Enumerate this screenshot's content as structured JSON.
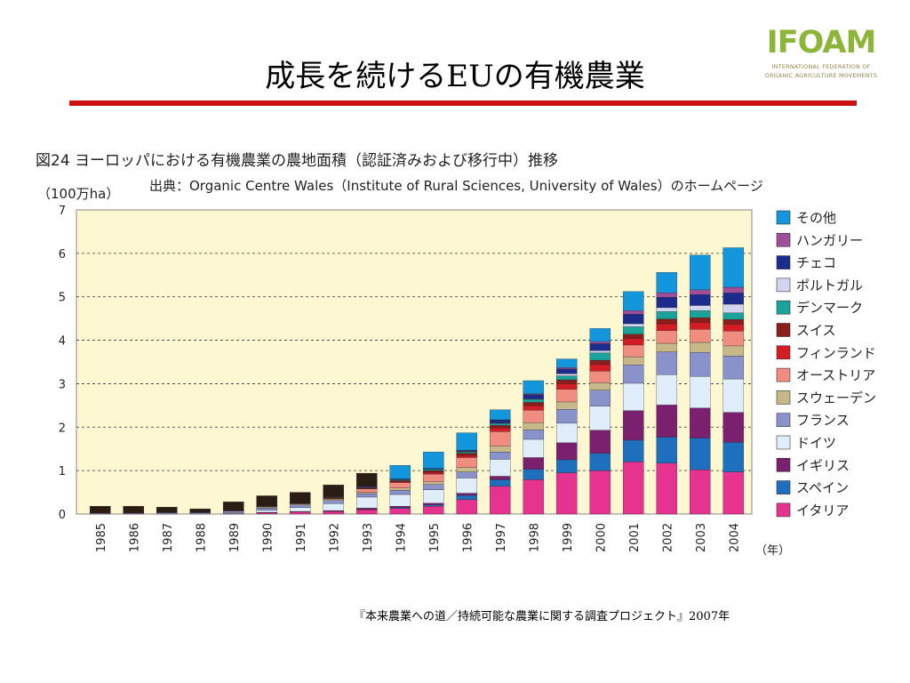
{
  "slide": {
    "title": "成長を続けるEUの有機農業",
    "footer": "『本来農業への道／持続可能な農業に関する調査プロジェクト』2007年"
  },
  "logo": {
    "word": "IFOAM",
    "line1": "INTERNATIONAL  FEDERATION  OF",
    "line2": "ORGANIC AGRICULTURE MOVEMENTS"
  },
  "colors": {
    "accent_rule": "#cc1111",
    "plot_background": "#fdf7d2",
    "logo_green": "#8db53a"
  },
  "chart_data": {
    "type": "bar",
    "stacked": true,
    "title": "図24 ヨーロッパにおける有機農業の農地面積（認証済みおよび移行中）推移",
    "source": "出典：Organic Centre Wales（Institute of Rural Sciences, University of Wales）のホームページ",
    "ylabel": "（100万ha）",
    "xlabel": "（年）",
    "ylim": [
      0,
      7
    ],
    "yticks": [
      "0",
      "1",
      "2",
      "3",
      "4",
      "5",
      "6",
      "7"
    ],
    "grid": "dashed horizontal",
    "legend_position": "right",
    "categories": [
      "1985",
      "1986",
      "1987",
      "1988",
      "1989",
      "1990",
      "1991",
      "1992",
      "1993",
      "1994",
      "1995",
      "1996",
      "1997",
      "1998",
      "1999",
      "2000",
      "2001",
      "2002",
      "2003",
      "2004"
    ],
    "series": [
      {
        "name": "イタリア",
        "color": "#e6338f",
        "values": [
          0,
          0,
          0,
          0,
          0,
          0.03,
          0.05,
          0.06,
          0.1,
          0.13,
          0.18,
          0.33,
          0.64,
          0.79,
          0.95,
          1.0,
          1.2,
          1.17,
          1.02,
          0.97
        ]
      },
      {
        "name": "スペイン",
        "color": "#1e6fbd",
        "values": [
          0,
          0,
          0,
          0,
          0,
          0,
          0,
          0,
          0.01,
          0.02,
          0.03,
          0.1,
          0.15,
          0.24,
          0.3,
          0.4,
          0.5,
          0.6,
          0.73,
          0.68
        ]
      },
      {
        "name": "イギリス",
        "color": "#7b1f6f",
        "values": [
          0,
          0,
          0,
          0,
          0.01,
          0.01,
          0.01,
          0.02,
          0.03,
          0.03,
          0.04,
          0.05,
          0.08,
          0.27,
          0.39,
          0.53,
          0.68,
          0.74,
          0.69,
          0.69
        ]
      },
      {
        "name": "ドイツ",
        "color": "#dfeefa",
        "values": [
          0,
          0,
          0,
          0,
          0.02,
          0.05,
          0.09,
          0.16,
          0.25,
          0.27,
          0.31,
          0.35,
          0.39,
          0.42,
          0.45,
          0.55,
          0.63,
          0.7,
          0.73,
          0.77
        ]
      },
      {
        "name": "フランス",
        "color": "#8a92cc",
        "values": [
          0.02,
          0.02,
          0.03,
          0.03,
          0.04,
          0.05,
          0.06,
          0.07,
          0.08,
          0.1,
          0.12,
          0.14,
          0.17,
          0.22,
          0.32,
          0.37,
          0.42,
          0.52,
          0.55,
          0.53
        ]
      },
      {
        "name": "スウェーデン",
        "color": "#c7b88a",
        "values": [
          0,
          0,
          0,
          0,
          0,
          0.02,
          0.02,
          0.03,
          0.03,
          0.05,
          0.06,
          0.1,
          0.13,
          0.16,
          0.17,
          0.17,
          0.19,
          0.2,
          0.23,
          0.23
        ]
      },
      {
        "name": "オーストリア",
        "color": "#f08c80",
        "values": [
          0,
          0,
          0,
          0,
          0,
          0.01,
          0.01,
          0.01,
          0.08,
          0.12,
          0.18,
          0.23,
          0.34,
          0.29,
          0.29,
          0.27,
          0.27,
          0.29,
          0.3,
          0.34
        ]
      },
      {
        "name": "フィンランド",
        "color": "#d41c25",
        "values": [
          0,
          0,
          0,
          0,
          0,
          0,
          0,
          0.01,
          0.01,
          0.02,
          0.04,
          0.05,
          0.08,
          0.1,
          0.13,
          0.15,
          0.15,
          0.16,
          0.16,
          0.16
        ]
      },
      {
        "name": "スイス",
        "color": "#8b1d1d",
        "values": [
          0.01,
          0.01,
          0.01,
          0.01,
          0.01,
          0.01,
          0.01,
          0.02,
          0.02,
          0.03,
          0.04,
          0.05,
          0.06,
          0.08,
          0.09,
          0.1,
          0.1,
          0.11,
          0.11,
          0.11
        ]
      },
      {
        "name": "デンマーク",
        "color": "#19a39a",
        "values": [
          0,
          0,
          0,
          0,
          0,
          0,
          0,
          0.01,
          0.01,
          0.02,
          0.03,
          0.03,
          0.04,
          0.07,
          0.09,
          0.17,
          0.17,
          0.17,
          0.16,
          0.15
        ]
      },
      {
        "name": "ポルトガル",
        "color": "#d2d5f0",
        "values": [
          0,
          0,
          0,
          0,
          0,
          0,
          0,
          0,
          0,
          0,
          0,
          0.01,
          0.01,
          0.01,
          0.05,
          0.05,
          0.07,
          0.09,
          0.12,
          0.2
        ]
      },
      {
        "name": "チェコ",
        "color": "#1c2c8c",
        "values": [
          0,
          0,
          0,
          0,
          0,
          0,
          0,
          0.01,
          0.02,
          0.02,
          0.02,
          0.02,
          0.07,
          0.1,
          0.11,
          0.16,
          0.22,
          0.24,
          0.25,
          0.26
        ]
      },
      {
        "name": "ハンガリー",
        "color": "#a04d9a",
        "values": [
          0,
          0,
          0,
          0,
          0,
          0,
          0,
          0,
          0,
          0,
          0,
          0.01,
          0.01,
          0.02,
          0.03,
          0.05,
          0.08,
          0.1,
          0.11,
          0.13
        ]
      },
      {
        "name": "その他",
        "color": "#1396dc",
        "values": [
          0.15,
          0.15,
          0.12,
          0.08,
          0.2,
          0.24,
          0.25,
          0.27,
          0.3,
          0.31,
          0.38,
          0.4,
          0.23,
          0.3,
          0.2,
          0.3,
          0.44,
          0.47,
          0.8,
          0.91
        ]
      }
    ]
  }
}
